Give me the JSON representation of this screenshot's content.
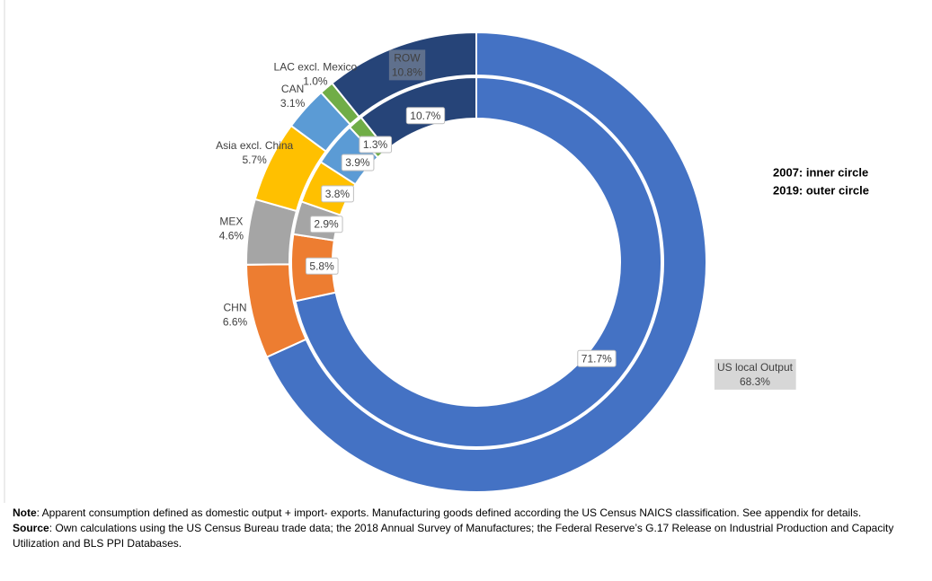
{
  "chart_data": {
    "type": "donut",
    "categories": [
      "US local Output",
      "CHN",
      "MEX",
      "Asia excl. China",
      "CAN",
      "LAC excl. Mexico",
      "ROW"
    ],
    "colors": [
      "#4472c4",
      "#ed7d31",
      "#a5a5a5",
      "#ffc000",
      "#5b9bd5",
      "#70ad47",
      "#264478"
    ],
    "series": [
      {
        "values": [
          68.3,
          6.6,
          4.6,
          5.7,
          3.1,
          1.0,
          10.8
        ],
        "value_labels": [
          "68.3%",
          "6.6%",
          "4.6%",
          "5.7%",
          "3.1%",
          "1.0%",
          "10.8%"
        ]
      },
      {
        "values": [
          71.7,
          5.8,
          2.9,
          3.8,
          3.9,
          1.3,
          10.7
        ],
        "value_labels": [
          "71.7%",
          "5.8%",
          "2.9%",
          "3.8%",
          "3.9%",
          "1.3%",
          "10.7%"
        ]
      }
    ],
    "annotations": [
      "2007: inner circle",
      "2019: outer circle"
    ],
    "notes": [
      {
        "label": "Note",
        "text": ":  Apparent consumption defined as domestic output + import- exports.  Manufacturing goods defined  according the US Census NAICS classification. See appendix for details."
      },
      {
        "label": "Source",
        "text": ": Own calculations using the US Census Bureau trade data; the 2018  Annual Survey of Manufactures; the Federal Reserve’s G.17 Release on Industrial Production and Capacity Utilization and BLS PPI Databases."
      }
    ]
  }
}
